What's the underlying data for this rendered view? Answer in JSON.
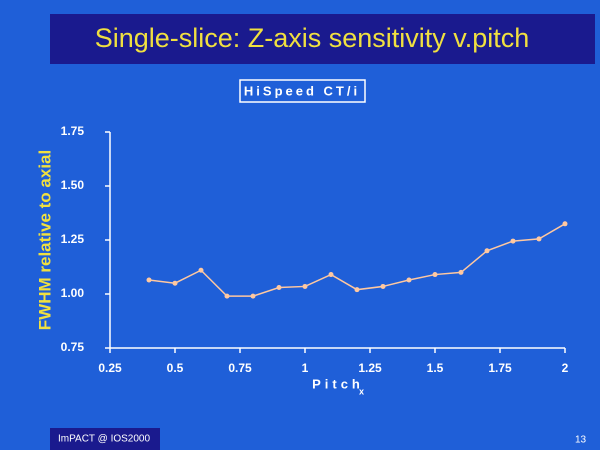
{
  "chart_data": {
    "type": "line",
    "title": "Single-slice:  Z-axis sensitivity v.pitch",
    "subtitle": "HiSpeed CT/i",
    "x_label": "Pitch",
    "x_label_subscript": "x",
    "y_label": "FWHM relative to axial",
    "x": [
      0.4,
      0.5,
      0.6,
      0.7,
      0.8,
      0.9,
      1.0,
      1.1,
      1.2,
      1.3,
      1.4,
      1.5,
      1.6,
      1.7,
      1.8,
      1.9,
      2.0
    ],
    "series": [
      {
        "name": "HiSpeed CT/i",
        "color": "#ffc8a0",
        "values": [
          1.065,
          1.05,
          1.11,
          0.99,
          0.99,
          1.03,
          1.035,
          1.09,
          1.02,
          1.035,
          1.065,
          1.09,
          1.1,
          1.2,
          1.245,
          1.255,
          1.325
        ]
      }
    ],
    "xlim": [
      0.25,
      2
    ],
    "xticks": [
      0.25,
      0.5,
      0.75,
      1,
      1.25,
      1.5,
      1.75,
      2
    ],
    "ylim": [
      0.75,
      1.75
    ],
    "yticks": [
      {
        "value": 0.75,
        "label": "0.75"
      },
      {
        "value": 1.0,
        "label": "1.00"
      },
      {
        "value": 1.25,
        "label": "1.25"
      },
      {
        "value": 1.5,
        "label": "1.50"
      },
      {
        "value": 1.75,
        "label": "1.75"
      }
    ],
    "grid": false
  },
  "footer": {
    "label": "ImPACT @ IOS2000",
    "page": "13"
  }
}
